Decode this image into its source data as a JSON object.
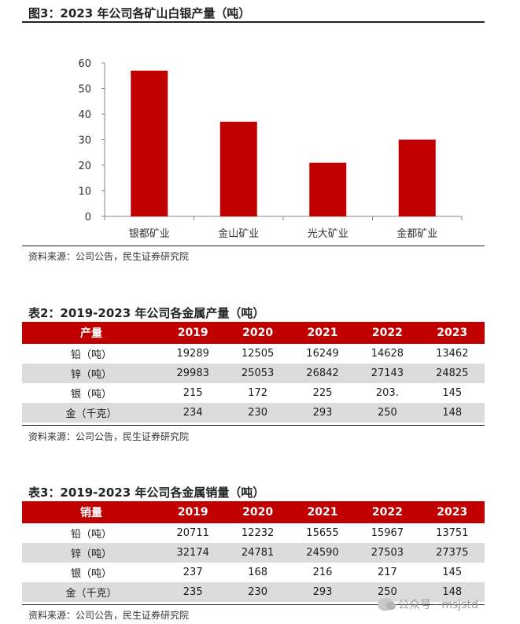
{
  "figure": {
    "title": "图3：2023 年公司各矿山白银产量（吨）",
    "source": "资料来源：公司公告，民生证券研究院"
  },
  "chart_data": {
    "type": "bar",
    "title": "图3：2023 年公司各矿山白银产量（吨）",
    "categories": [
      "银都矿业",
      "金山矿业",
      "光大矿业",
      "金都矿业"
    ],
    "values": [
      57,
      37,
      21,
      30
    ],
    "yticks": [
      0,
      10,
      20,
      30,
      40,
      50,
      60
    ],
    "ylim": [
      0,
      60
    ],
    "xlabel": "",
    "ylabel": "",
    "grid": false,
    "bar_color": "#c00000"
  },
  "table2": {
    "title": "表2：2019-2023 年公司各金属产量（吨）",
    "headers": [
      "产量",
      "2019",
      "2020",
      "2021",
      "2022",
      "2023"
    ],
    "rows": [
      [
        "铅（吨）",
        "19289",
        "12505",
        "16249",
        "14628",
        "13462"
      ],
      [
        "锌（吨）",
        "29983",
        "25053",
        "26842",
        "27143",
        "24825"
      ],
      [
        "银（吨）",
        "215",
        "172",
        "225",
        "203.",
        "145"
      ],
      [
        "金（千克）",
        "234",
        "230",
        "293",
        "250",
        "148"
      ]
    ],
    "source": "资料来源：公司公告，民生证券研究院"
  },
  "table3": {
    "title": "表3：2019-2023 年公司各金属销量（吨）",
    "headers": [
      "销量",
      "2019",
      "2020",
      "2021",
      "2022",
      "2023"
    ],
    "rows": [
      [
        "铅（吨）",
        "20711",
        "12232",
        "15655",
        "15967",
        "13751"
      ],
      [
        "锌（吨）",
        "32174",
        "24781",
        "24590",
        "27503",
        "27375"
      ],
      [
        "银（吨）",
        "237",
        "168",
        "216",
        "217",
        "145"
      ],
      [
        "金（千克）",
        "235",
        "230",
        "293",
        "250",
        "148"
      ]
    ],
    "source": "资料来源：公司公告，民生证券研究院"
  },
  "watermark": {
    "text": "公众号 · msjstd",
    "icon": "wechat-icon"
  },
  "colors": {
    "accent": "#c00000",
    "stripe": "#dcdcdc"
  }
}
